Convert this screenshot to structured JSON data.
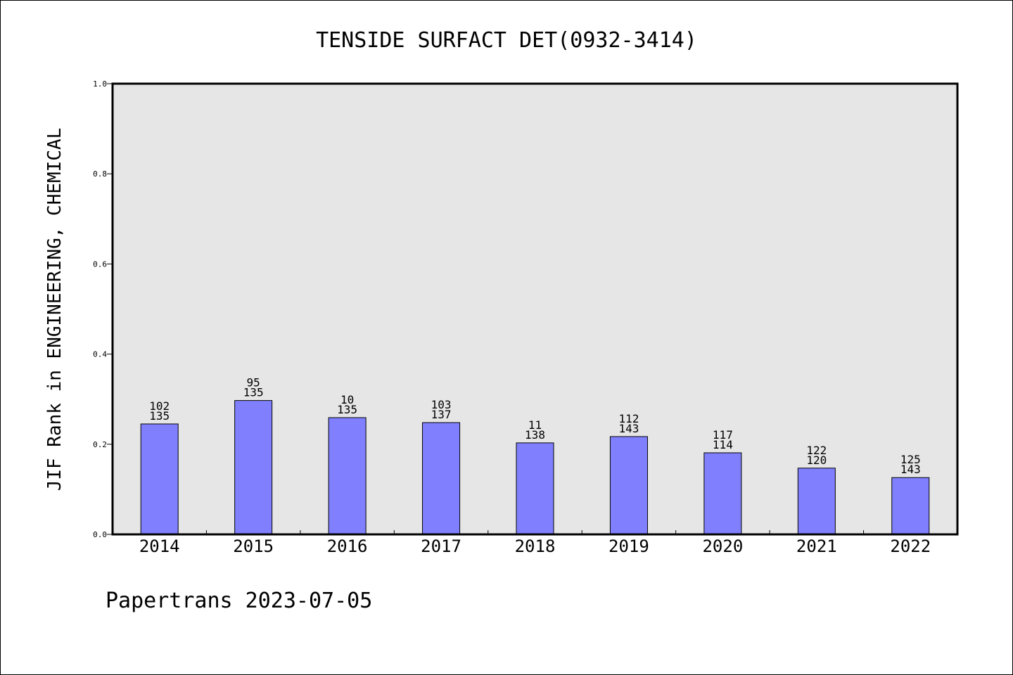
{
  "chart_data": {
    "type": "bar",
    "title": "TENSIDE SURFACT DET(0932-3414)",
    "xlabel": "",
    "ylabel": "JIF Rank in ENGINEERING, CHEMICAL",
    "ylim": [
      0,
      1.0
    ],
    "yticks": [
      "0.0",
      "0.2",
      "0.4",
      "0.6",
      "0.8",
      "1.0"
    ],
    "categories": [
      "2014",
      "2015",
      "2016",
      "2017",
      "2018",
      "2019",
      "2020",
      "2021",
      "2022"
    ],
    "values": [
      0.245,
      0.297,
      0.259,
      0.248,
      0.203,
      0.217,
      0.181,
      0.147,
      0.126
    ],
    "rank_labels": [
      [
        "102",
        "135"
      ],
      [
        "95",
        "135"
      ],
      [
        "10",
        "135"
      ],
      [
        "103",
        "137"
      ],
      [
        "11",
        "138"
      ],
      [
        "112",
        "143"
      ],
      [
        "117",
        "114"
      ],
      [
        "122",
        "120"
      ],
      [
        "125",
        "143"
      ]
    ],
    "bar_color": "#8080ff",
    "plot_background": "#e6e6e6",
    "grid": false,
    "legend": "none"
  },
  "footer": "Papertrans 2023-07-05"
}
